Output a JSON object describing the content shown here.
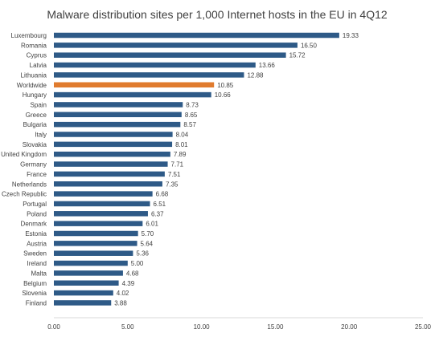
{
  "chart_data": {
    "type": "bar",
    "orientation": "horizontal",
    "title": "Malware distribution sites per 1,000 Internet hosts in the EU in 4Q12",
    "xlabel": "",
    "ylabel": "",
    "xlim": [
      0,
      25
    ],
    "x_ticks": [
      "0.00",
      "5.00",
      "10.00",
      "15.00",
      "20.00",
      "25.00"
    ],
    "grid": false,
    "legend": "none",
    "colors": {
      "default_bar": "#2E5A87",
      "highlight_bar": "#E07B2E",
      "axis": "#D9D9D9",
      "text": "#404040"
    },
    "highlight_category": "Worldwide",
    "categories": [
      "Luxembourg",
      "Romania",
      "Cyprus",
      "Latvia",
      "Lithuania",
      "Worldwide",
      "Hungary",
      "Spain",
      "Greece",
      "Bulgaria",
      "Italy",
      "Slovakia",
      "United Kingdom",
      "Germany",
      "France",
      "Netherlands",
      "Czech Republic",
      "Portugal",
      "Poland",
      "Denmark",
      "Estonia",
      "Austria",
      "Sweden",
      "Ireland",
      "Malta",
      "Belgium",
      "Slovenia",
      "Finland"
    ],
    "values": [
      19.33,
      16.5,
      15.72,
      13.66,
      12.88,
      10.85,
      10.66,
      8.73,
      8.65,
      8.57,
      8.04,
      8.01,
      7.89,
      7.71,
      7.51,
      7.35,
      6.68,
      6.51,
      6.37,
      6.01,
      5.7,
      5.64,
      5.36,
      5.0,
      4.68,
      4.39,
      4.02,
      3.88
    ],
    "value_labels": [
      "19.33",
      "16.50",
      "15.72",
      "13.66",
      "12.88",
      "10.85",
      "10.66",
      "8.73",
      "8.65",
      "8.57",
      "8.04",
      "8.01",
      "7.89",
      "7.71",
      "7.51",
      "7.35",
      "6.68",
      "6.51",
      "6.37",
      "6.01",
      "5.70",
      "5.64",
      "5.36",
      "5.00",
      "4.68",
      "4.39",
      "4.02",
      "3.88"
    ]
  }
}
